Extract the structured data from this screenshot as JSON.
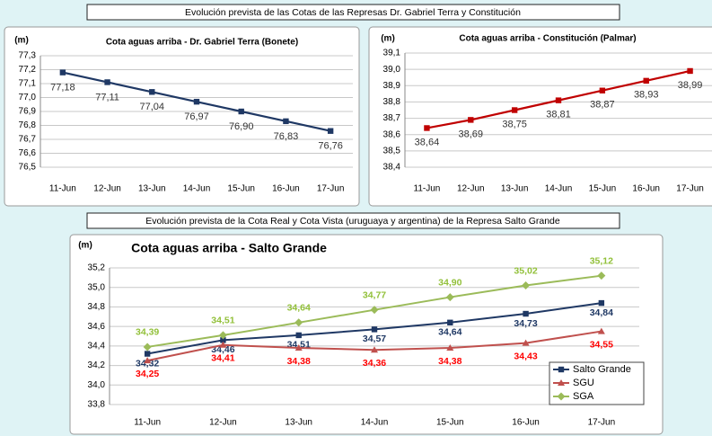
{
  "headers": [
    "Evolución prevista de las Cotas de las Represas Dr. Gabriel Terra y Constitución",
    "Evolución prevista de la Cota Real y Cota Vista (uruguaya y argentina) de la Represa Salto Grande"
  ],
  "chart_data": [
    {
      "type": "line",
      "title": "Cota aguas arriba - Dr. Gabriel Terra (Bonete)",
      "ylabel": "(m)",
      "categories": [
        "11-Jun",
        "12-Jun",
        "13-Jun",
        "14-Jun",
        "15-Jun",
        "16-Jun",
        "17-Jun"
      ],
      "series": [
        {
          "name": "Bonete",
          "color": "#1f3864",
          "marker": "square",
          "values": [
            77.18,
            77.11,
            77.04,
            76.97,
            76.9,
            76.83,
            76.76
          ],
          "value_labels": [
            "77,18",
            "77,11",
            "77,04",
            "76,97",
            "76,90",
            "76,83",
            "76,76"
          ]
        }
      ],
      "ylim": [
        76.5,
        77.3
      ],
      "yticks": [
        {
          "value": 76.5,
          "label": "76,5"
        },
        {
          "value": 76.6,
          "label": "76,6"
        },
        {
          "value": 76.7,
          "label": "76,7"
        },
        {
          "value": 76.8,
          "label": "76,8"
        },
        {
          "value": 76.9,
          "label": "76,9"
        },
        {
          "value": 77.0,
          "label": "77,0"
        },
        {
          "value": 77.1,
          "label": "77,1"
        },
        {
          "value": 77.2,
          "label": "77,2"
        },
        {
          "value": 77.3,
          "label": "77,3"
        }
      ],
      "grid": true,
      "legend": false
    },
    {
      "type": "line",
      "title": "Cota aguas arriba - Constitución (Palmar)",
      "ylabel": "(m)",
      "categories": [
        "11-Jun",
        "12-Jun",
        "13-Jun",
        "14-Jun",
        "15-Jun",
        "16-Jun",
        "17-Jun"
      ],
      "series": [
        {
          "name": "Palmar",
          "color": "#c00000",
          "marker": "square",
          "values": [
            38.64,
            38.69,
            38.75,
            38.81,
            38.87,
            38.93,
            38.99
          ],
          "value_labels": [
            "38,64",
            "38,69",
            "38,75",
            "38,81",
            "38,87",
            "38,93",
            "38,99"
          ]
        }
      ],
      "ylim": [
        38.4,
        39.1
      ],
      "yticks": [
        {
          "value": 38.4,
          "label": "38,4"
        },
        {
          "value": 38.5,
          "label": "38,5"
        },
        {
          "value": 38.6,
          "label": "38,6"
        },
        {
          "value": 38.7,
          "label": "38,7"
        },
        {
          "value": 38.8,
          "label": "38,8"
        },
        {
          "value": 38.9,
          "label": "38,9"
        },
        {
          "value": 39.0,
          "label": "39,0"
        },
        {
          "value": 39.1,
          "label": "39,1"
        }
      ],
      "grid": true,
      "legend": false
    },
    {
      "type": "line",
      "title": "Cota aguas arriba - Salto Grande",
      "ylabel": "(m)",
      "categories": [
        "11-Jun",
        "12-Jun",
        "13-Jun",
        "14-Jun",
        "15-Jun",
        "16-Jun",
        "17-Jun"
      ],
      "series": [
        {
          "name": "Salto Grande",
          "color": "#1f3864",
          "label_color": "#1f3864",
          "marker": "square",
          "values": [
            34.32,
            34.46,
            34.51,
            34.57,
            34.64,
            34.73,
            34.84
          ],
          "value_labels": [
            "34,32",
            "34,46",
            "34,51",
            "34,57",
            "34,64",
            "34,73",
            "34,84"
          ]
        },
        {
          "name": "SGU",
          "color": "#c0504d",
          "label_color": "#ff0000",
          "marker": "triangle",
          "values": [
            34.25,
            34.41,
            34.38,
            34.36,
            34.38,
            34.43,
            34.55
          ],
          "value_labels": [
            "34,25",
            "34,41",
            "34,38",
            "34,36",
            "34,38",
            "34,43",
            "34,55"
          ]
        },
        {
          "name": "SGA",
          "color": "#9bbb59",
          "label_color": "#92c03a",
          "marker": "diamond",
          "values": [
            34.39,
            34.51,
            34.64,
            34.77,
            34.9,
            35.02,
            35.12
          ],
          "value_labels": [
            "34,39",
            "34,51",
            "34,64",
            "34,77",
            "34,90",
            "35,02",
            "35,12"
          ]
        }
      ],
      "ylim": [
        33.8,
        35.2
      ],
      "yticks": [
        {
          "value": 33.8,
          "label": "33,8"
        },
        {
          "value": 34.0,
          "label": "34,0"
        },
        {
          "value": 34.2,
          "label": "34,2"
        },
        {
          "value": 34.4,
          "label": "34,4"
        },
        {
          "value": 34.6,
          "label": "34,6"
        },
        {
          "value": 34.8,
          "label": "34,8"
        },
        {
          "value": 35.0,
          "label": "35,0"
        },
        {
          "value": 35.2,
          "label": "35,2"
        }
      ],
      "grid": true,
      "legend": "lower right"
    }
  ]
}
